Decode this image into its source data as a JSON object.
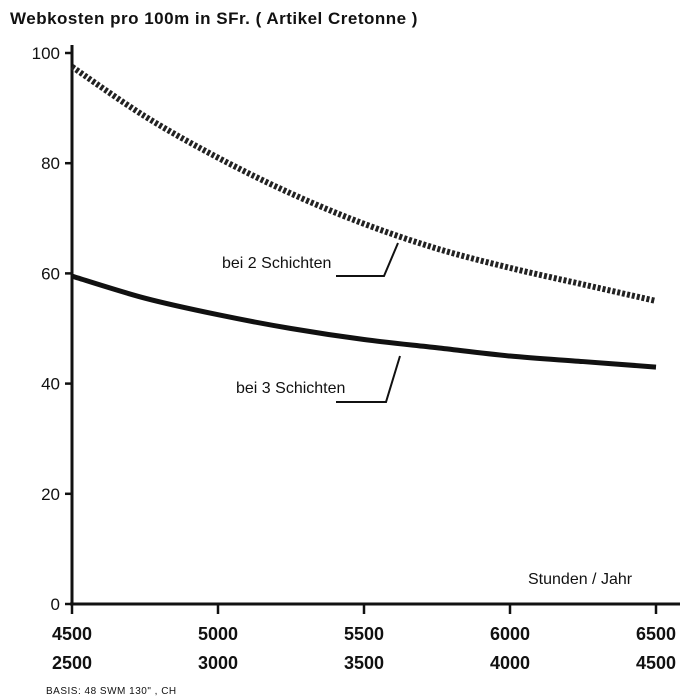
{
  "chart_data": {
    "type": "line",
    "title": "Webkosten pro 100m in SFr. ( Artikel Cretonne )",
    "xlabel": "Stunden / Jahr",
    "ylim": [
      0,
      100
    ],
    "yticks": [
      "0",
      "20",
      "40",
      "60",
      "80",
      "100"
    ],
    "x": [
      4500,
      5000,
      5500,
      6000,
      6500
    ],
    "x_secondary": [
      2500,
      3000,
      3500,
      4000,
      4500
    ],
    "xticks_row1": [
      "4500",
      "5000",
      "5500",
      "6000",
      "6500"
    ],
    "xticks_row2": [
      "2500",
      "3000",
      "3500",
      "4000",
      "4500"
    ],
    "series": [
      {
        "name": "bei 2 Schichten",
        "style": "dotted",
        "x": [
          4500,
          4750,
          5000,
          5250,
          5500,
          5750,
          6000,
          6250,
          6500
        ],
        "values": [
          97.5,
          88.5,
          81,
          74.5,
          69,
          64.5,
          61,
          58,
          55
        ]
      },
      {
        "name": "bei 3 Schichten",
        "style": "solid",
        "x": [
          4500,
          4750,
          5000,
          5250,
          5500,
          5750,
          6000,
          6250,
          6500
        ],
        "values": [
          59.5,
          55.5,
          52.5,
          50,
          48,
          46.5,
          45,
          44,
          43
        ]
      }
    ],
    "grid": false,
    "legend": "inline annotations",
    "note": "BASIS:  48  SWM  130\" , CH"
  }
}
